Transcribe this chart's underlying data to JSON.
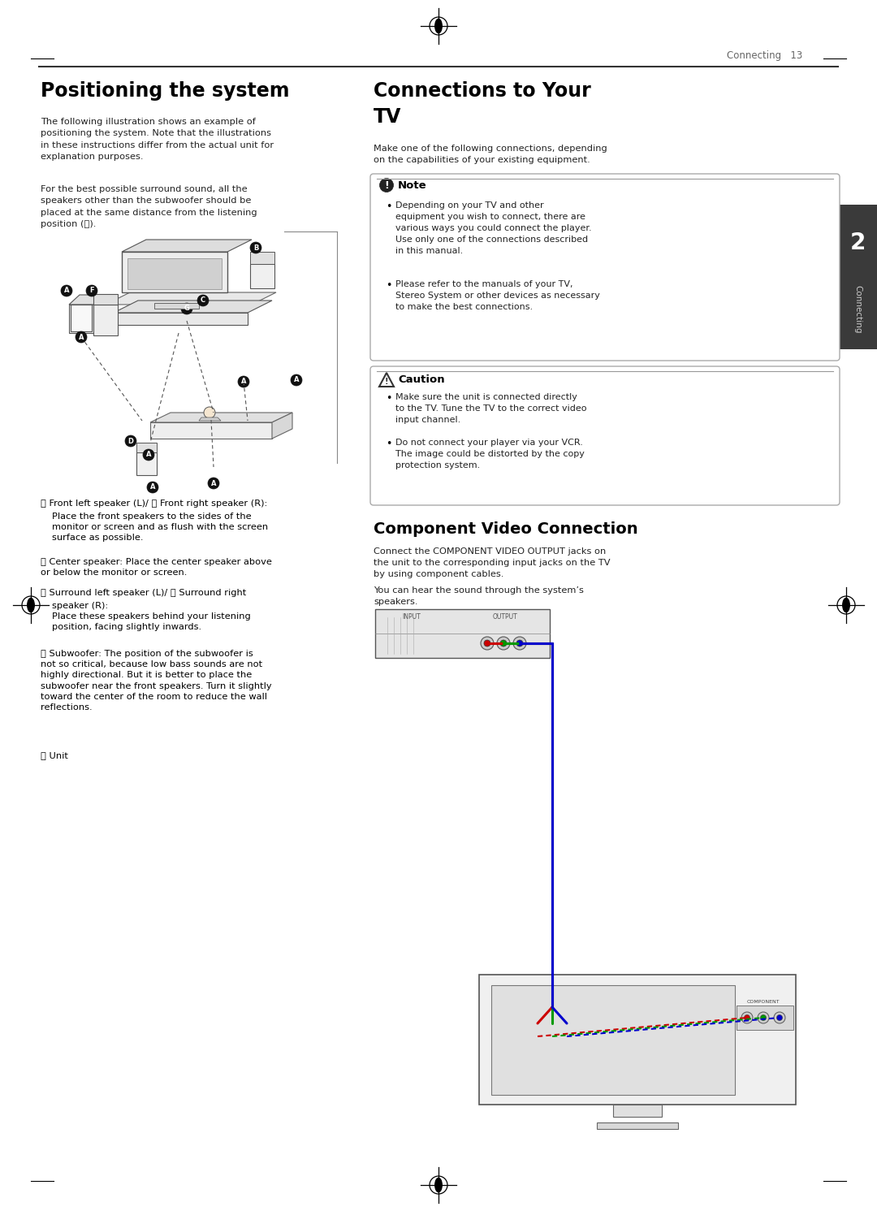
{
  "bg_color": "#ffffff",
  "page_header": "Connecting   13",
  "title_left": "Positioning the system",
  "title_right1": "Connections to Your",
  "title_right2": "TV",
  "body_left1": "The following illustration shows an example of\npositioning the system. Note that the illustrations\nin these instructions differ from the actual unit for\nexplanation purposes.",
  "body_left2": "For the best possible surround sound, all the\nspeakers other than the subwoofer should be\nplaced at the same distance from the listening\nposition (Ⓐ).",
  "right_intro": "Make one of the following connections, depending\non the capabilities of your existing equipment.",
  "note_title": "Note",
  "note_b1": "Depending on your TV and other\nequipment you wish to connect, there are\nvarious ways you could connect the player.\nUse only one of the connections described\nin this manual.",
  "note_b2": "Please refer to the manuals of your TV,\nStereo System or other devices as necessary\nto make the best connections.",
  "caution_title": "Caution",
  "caution_b1": "Make sure the unit is connected directly\nto the TV. Tune the TV to the correct video\ninput channel.",
  "caution_b2": "Do not connect your player via your VCR.\nThe image could be distorted by the copy\nprotection system.",
  "comp_title": "Component Video Connection",
  "comp_body1": "Connect the COMPONENT VIDEO OUTPUT jacks on\nthe unit to the corresponding input jacks on the TV\nby using component cables.",
  "comp_body2": "You can hear the sound through the system’s\nspeakers.",
  "label_AB": "Ⓐ Front left speaker (L)/ Ⓑ Front right speaker (R):",
  "label_AB2": "Place the front speakers to the sides of the\nmonitor or screen and as flush with the screen\nsurface as possible.",
  "label_C": "Ⓒ Center speaker: Place the center speaker above\nor below the monitor or screen.",
  "label_D": "Ⓓ Surround left speaker (L)/ Ⓔ Surround right",
  "label_D2": "speaker (R):\nPlace these speakers behind your listening\nposition, facing slightly inwards.",
  "label_F": "Ⓕ Subwoofer: The position of the subwoofer is\nnot so critical, because low bass sounds are not\nhighly directional. But it is better to place the\nsubwoofer near the front speakers. Turn it slightly\ntoward the center of the room to reduce the wall\nreflections.",
  "label_G": "Ⓖ Unit",
  "dark_color": "#3a3a3a",
  "gray_color": "#888888",
  "light_gray": "#d0d0d0",
  "border_color": "#bbbbbb"
}
